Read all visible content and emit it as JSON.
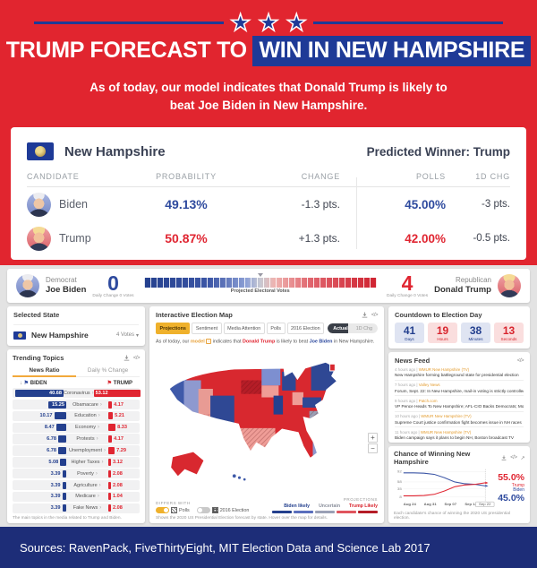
{
  "header": {
    "title_plain": "TRUMP FORECAST TO",
    "title_highlight": "WIN IN NEW HAMPSHIRE",
    "subtitle_line1": "As of today, our model indicates that Donald Trump is likely to",
    "subtitle_line2": "beat Joe Biden in New Hampshire."
  },
  "summary_card": {
    "state": "New Hampshire",
    "predicted_winner": "Predicted Winner: Trump",
    "columns": [
      "CANDIDATE",
      "PROBABILITY",
      "CHANGE",
      "POLLS",
      "1D CHG"
    ],
    "rows": [
      {
        "name": "Biden",
        "probability": "49.13%",
        "change": "-1.3 pts.",
        "polls": "45.00%",
        "chg1d": "-3 pts."
      },
      {
        "name": "Trump",
        "probability": "50.87%",
        "change": "+1.3 pts.",
        "polls": "42.00%",
        "chg1d": "-0.5 pts."
      }
    ]
  },
  "scoreboard": {
    "left": {
      "party": "Democrat",
      "name": "Joe Biden",
      "votes": "0",
      "daily_change": "Daily Change  0 Votes"
    },
    "right": {
      "party": "Republican",
      "name": "Donald Trump",
      "votes": "4",
      "daily_change": "Daily Change  0 Votes"
    },
    "bar_label": "Projected Electoral Votes"
  },
  "selected_state": {
    "title": "Selected State",
    "state": "New Hampshire",
    "votes": "4 Votes"
  },
  "trending": {
    "title": "Trending Topics",
    "tabs": [
      "News Ratio",
      "Daily % Change"
    ],
    "active_tab": 0,
    "col_left": "BIDEN",
    "col_right": "TRUMP",
    "footer": "The main topics in the media related to Trump and Biden."
  },
  "map_panel": {
    "title": "Interactive Election Map",
    "buttons": [
      "Projections",
      "Sentiment",
      "Media Attention",
      "Polls",
      "2016 Election"
    ],
    "active_button": 0,
    "toggle_dark": "Actual",
    "toggle_light": "1D Chg",
    "sentence": {
      "p1": "As of today, our ",
      "model": "model",
      "p2": " indicates that ",
      "trump": "Donald Trump",
      "p3": " is likely to beat ",
      "biden": "Joe Biden",
      "p4": " in New Hampshire."
    },
    "differs_label": "DIFFERS WITH",
    "differs": [
      {
        "label": "Polls",
        "on": true,
        "icon": "hatch"
      },
      {
        "label": "2016 Election",
        "on": false,
        "icon": "checker"
      }
    ],
    "projections_label": "PROJECTIONS",
    "legend_labels": [
      "Biden likely",
      "Uncertain",
      "Trump Likely"
    ],
    "legend_label_colors": [
      "#24408e",
      "#8a8f9b",
      "#d8242d"
    ],
    "legend_segment_colors": [
      "#24408e",
      "#5a6fbd",
      "#9aa0b5",
      "#e0555e",
      "#b51d27"
    ],
    "footer": "Shows the 2020 US Presidential Election forecast by state. Hover over the map for details."
  },
  "countdown": {
    "title": "Countdown to Election Day",
    "items": [
      {
        "value": "41",
        "label": "Days",
        "tone": "blue"
      },
      {
        "value": "19",
        "label": "Hours",
        "tone": "red"
      },
      {
        "value": "38",
        "label": "Minutes",
        "tone": "blue"
      },
      {
        "value": "13",
        "label": "Seconds",
        "tone": "red"
      }
    ]
  },
  "news_feed": {
    "title": "News Feed",
    "items": [
      {
        "time": "4 hours ago",
        "source": "WMUR New Hampshire (TV)",
        "headline": "New Hampshire forming battleground state for presidential election"
      },
      {
        "time": "7 hours ago",
        "source": "Valley News",
        "headline": "Forum, Sept. 22: In New Hampshire, mail-in voting is strictly controlled"
      },
      {
        "time": "9 hours ago",
        "source": "Patch.com",
        "headline": "VP Pence Heads To New Hampshire; AFL-CIO Backs Democrats; More"
      },
      {
        "time": "10 hours ago",
        "source": "WMUR New Hampshire (TV)",
        "headline": "Supreme Court justice confirmation fight becomes issue in NH races"
      },
      {
        "time": "11 hours ago",
        "source": "WMUR New Hampshire (TV)",
        "headline": "Biden campaign says it plans to begin NH, Boston broadcast TV"
      }
    ]
  },
  "win_chart": {
    "title": "Chance of Winning New Hampshire",
    "y_ticks": [
      "92",
      "58",
      "35",
      "8"
    ],
    "x_ticks": [
      "Aug 24",
      "Aug 31",
      "Sep 07",
      "Sep 14"
    ],
    "x_last": "Sep 22",
    "trump_pct": "55.0%",
    "trump_label": "Trump",
    "biden_label": "Biden",
    "biden_pct": "45.0%",
    "footer": "Each candidate's chance of winning the 2020 US presidential election."
  },
  "chart_data": [
    {
      "type": "bar",
      "title": "Trending Topics — News Ratio",
      "categories": [
        "Coronavirus",
        "Obamacare",
        "Education",
        "Economy",
        "Protests",
        "Unemployment",
        "Higher Taxes",
        "Poverty",
        "Agriculture",
        "Medicare",
        "Fake News"
      ],
      "series": [
        {
          "name": "Biden",
          "color": "#24408e",
          "values": [
            40.68,
            15.25,
            10.17,
            8.47,
            6.78,
            6.78,
            5.08,
            3.39,
            3.39,
            3.39,
            3.39
          ]
        },
        {
          "name": "Trump",
          "color": "#e02531",
          "values": [
            53.12,
            4.17,
            5.21,
            8.33,
            4.17,
            7.29,
            3.12,
            2.08,
            2.08,
            1.04,
            2.08
          ]
        }
      ],
      "legend_position": "top"
    },
    {
      "type": "line",
      "title": "Chance of Winning New Hampshire",
      "x": [
        "Aug 24",
        "Aug 27",
        "Aug 31",
        "Sep 03",
        "Sep 07",
        "Sep 10",
        "Sep 14",
        "Sep 18",
        "Sep 22"
      ],
      "series": [
        {
          "name": "Biden",
          "color": "#3b55a5",
          "values": [
            88,
            88,
            87,
            83,
            72,
            58,
            52,
            50,
            45
          ]
        },
        {
          "name": "Trump",
          "color": "#e02531",
          "values": [
            12,
            12,
            13,
            17,
            28,
            42,
            48,
            50,
            55
          ]
        }
      ],
      "ylim": [
        0,
        100
      ],
      "y_tick_labels": [
        92,
        58,
        35,
        8
      ],
      "grid": true,
      "annotations": {
        "Trump": "55.0%",
        "Biden": "45.0%"
      }
    }
  ],
  "sources": "Sources: RavenPack, FiveThirtyEight, MIT Election Data and Science Lab 2017",
  "colors": {
    "red": "#e1252f",
    "navy": "#1e3a97",
    "accent_yellow": "#efb12c",
    "footer_navy": "#1d2d78"
  }
}
